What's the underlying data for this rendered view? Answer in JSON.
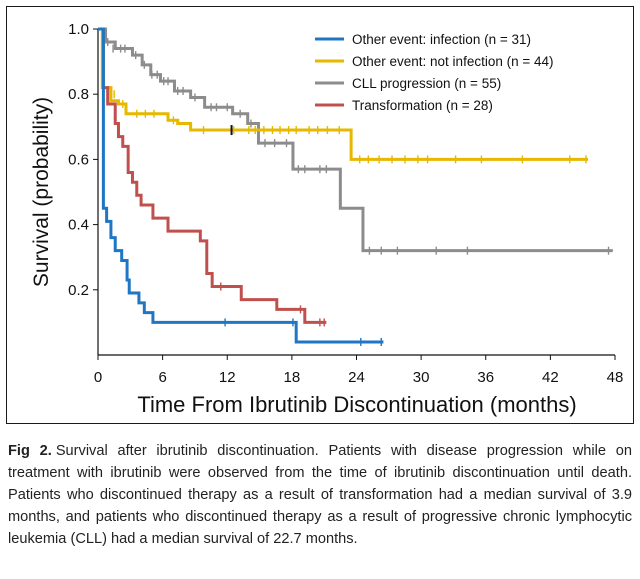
{
  "chart_data": {
    "type": "line",
    "xlabel": "Time From Ibrutinib Discontinuation (months)",
    "ylabel": "Survival (probability)",
    "xlim": [
      0,
      48
    ],
    "ylim": [
      0,
      1.0
    ],
    "xticks": [
      "0",
      "6",
      "12",
      "18",
      "24",
      "30",
      "36",
      "42",
      "48"
    ],
    "yticks": [
      "0.2",
      "0.4",
      "0.6",
      "0.8",
      "1.0"
    ],
    "legend_position": "top-right",
    "grid": false,
    "series": [
      {
        "name": "Other event: infection (n = 31)",
        "color": "#1f77c4",
        "steps": [
          [
            0,
            1.0
          ],
          [
            0.5,
            0.45
          ],
          [
            0.8,
            0.41
          ],
          [
            1.2,
            0.36
          ],
          [
            1.6,
            0.32
          ],
          [
            2.2,
            0.29
          ],
          [
            2.7,
            0.23
          ],
          [
            2.9,
            0.19
          ],
          [
            3.8,
            0.16
          ],
          [
            4.3,
            0.13
          ],
          [
            5.1,
            0.1
          ],
          [
            18.4,
            0.1
          ],
          [
            18.4,
            0.04
          ],
          [
            26.5,
            0.04
          ]
        ],
        "censored": [
          [
            11.8,
            0.1
          ],
          [
            18.1,
            0.1
          ],
          [
            24.4,
            0.04
          ],
          [
            26.3,
            0.04
          ]
        ]
      },
      {
        "name": "Other event: not infection (n = 44)",
        "color": "#e6b800",
        "steps": [
          [
            0,
            1.0
          ],
          [
            0.4,
            0.82
          ],
          [
            1.2,
            0.78
          ],
          [
            1.9,
            0.77
          ],
          [
            2.6,
            0.74
          ],
          [
            3.1,
            0.74
          ],
          [
            6.5,
            0.72
          ],
          [
            7.4,
            0.71
          ],
          [
            8.6,
            0.69
          ],
          [
            15.4,
            0.69
          ],
          [
            23.5,
            0.6
          ],
          [
            45.5,
            0.6
          ]
        ],
        "censored": [
          [
            1.5,
            0.8
          ],
          [
            2.3,
            0.77
          ],
          [
            3.6,
            0.74
          ],
          [
            4.4,
            0.74
          ],
          [
            5.2,
            0.74
          ],
          [
            7.0,
            0.72
          ],
          [
            9.8,
            0.69
          ],
          [
            12.6,
            0.69
          ],
          [
            14.0,
            0.69
          ],
          [
            14.6,
            0.69
          ],
          [
            15.4,
            0.69
          ],
          [
            16.2,
            0.69
          ],
          [
            16.9,
            0.69
          ],
          [
            17.7,
            0.69
          ],
          [
            18.4,
            0.69
          ],
          [
            19.6,
            0.69
          ],
          [
            20.4,
            0.69
          ],
          [
            21.3,
            0.69
          ],
          [
            22.4,
            0.69
          ],
          [
            24.3,
            0.6
          ],
          [
            25.1,
            0.6
          ],
          [
            26.1,
            0.6
          ],
          [
            27.3,
            0.6
          ],
          [
            28.5,
            0.6
          ],
          [
            29.7,
            0.6
          ],
          [
            30.6,
            0.6
          ],
          [
            33.2,
            0.6
          ],
          [
            35.6,
            0.6
          ],
          [
            39.4,
            0.6
          ],
          [
            43.8,
            0.6
          ],
          [
            45.3,
            0.6
          ]
        ],
        "highlight": [
          [
            12.4,
            0.69
          ]
        ]
      },
      {
        "name": "CLL progression (n = 55)",
        "color": "#8c8c8c",
        "steps": [
          [
            0,
            1.0
          ],
          [
            0.7,
            0.96
          ],
          [
            1.6,
            0.94
          ],
          [
            3.2,
            0.92
          ],
          [
            4.1,
            0.89
          ],
          [
            4.9,
            0.86
          ],
          [
            5.8,
            0.84
          ],
          [
            7.1,
            0.81
          ],
          [
            8.6,
            0.79
          ],
          [
            9.9,
            0.76
          ],
          [
            12.5,
            0.74
          ],
          [
            13.9,
            0.71
          ],
          [
            14.9,
            0.65
          ],
          [
            18.1,
            0.57
          ],
          [
            22.5,
            0.45
          ],
          [
            24.6,
            0.32
          ],
          [
            47.8,
            0.32
          ]
        ],
        "censored": [
          [
            0.9,
            0.96
          ],
          [
            1.4,
            0.94
          ],
          [
            2.1,
            0.94
          ],
          [
            2.5,
            0.94
          ],
          [
            3.5,
            0.92
          ],
          [
            4.3,
            0.89
          ],
          [
            5.0,
            0.86
          ],
          [
            5.5,
            0.86
          ],
          [
            6.1,
            0.84
          ],
          [
            6.5,
            0.84
          ],
          [
            7.4,
            0.81
          ],
          [
            7.9,
            0.81
          ],
          [
            9.0,
            0.79
          ],
          [
            10.5,
            0.76
          ],
          [
            11.0,
            0.76
          ],
          [
            12.0,
            0.76
          ],
          [
            13.2,
            0.74
          ],
          [
            14.2,
            0.71
          ],
          [
            15.5,
            0.65
          ],
          [
            16.4,
            0.65
          ],
          [
            17.5,
            0.65
          ],
          [
            18.6,
            0.57
          ],
          [
            19.2,
            0.57
          ],
          [
            20.6,
            0.57
          ],
          [
            21.2,
            0.57
          ],
          [
            25.2,
            0.32
          ],
          [
            26.3,
            0.32
          ],
          [
            27.8,
            0.32
          ],
          [
            31.4,
            0.32
          ],
          [
            34.3,
            0.32
          ],
          [
            47.4,
            0.32
          ]
        ]
      },
      {
        "name": "Transformation (n = 28)",
        "color": "#c0504d",
        "steps": [
          [
            0,
            1.0
          ],
          [
            0.5,
            0.82
          ],
          [
            0.9,
            0.77
          ],
          [
            1.6,
            0.71
          ],
          [
            1.9,
            0.67
          ],
          [
            2.3,
            0.64
          ],
          [
            2.8,
            0.56
          ],
          [
            3.2,
            0.53
          ],
          [
            3.6,
            0.49
          ],
          [
            4.0,
            0.46
          ],
          [
            5.1,
            0.42
          ],
          [
            6.5,
            0.38
          ],
          [
            9.5,
            0.35
          ],
          [
            10.1,
            0.25
          ],
          [
            10.6,
            0.21
          ],
          [
            13.3,
            0.17
          ],
          [
            16.6,
            0.14
          ],
          [
            19.2,
            0.1
          ],
          [
            21.2,
            0.1
          ]
        ],
        "censored": [
          [
            11.4,
            0.21
          ],
          [
            18.8,
            0.14
          ],
          [
            20.6,
            0.1
          ],
          [
            21.0,
            0.1
          ]
        ]
      }
    ]
  },
  "caption": {
    "label": "Fig 2.",
    "text": "Survival after ibrutinib discontinuation. Patients with disease progression while on treatment with ibrutinib were observed from the time of ibrutinib discontinuation until death. Patients who discontinued therapy as a result of transformation had a median survival of 3.9 months, and patients who discontinued therapy as a result of progressive chronic lymphocytic leukemia (CLL) had a median survival of 22.7 months."
  }
}
